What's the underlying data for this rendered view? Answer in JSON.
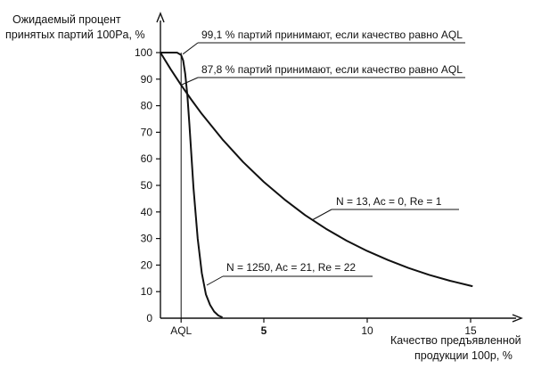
{
  "chart_data": {
    "type": "line",
    "ylabel_line1": "Ожидаемый процент",
    "ylabel_line2": "принятых партий 100Pa, %",
    "xlabel_line1": "Качество предъявленной",
    "xlabel_line2": "продукции 100p, %",
    "ylim": [
      0,
      105
    ],
    "xlim": [
      0,
      17
    ],
    "yticks": [
      0,
      10,
      20,
      30,
      40,
      50,
      60,
      70,
      80,
      90,
      100
    ],
    "xticks": [
      {
        "value": 1,
        "label": "AQL",
        "bold": false
      },
      {
        "value": 5,
        "label": "5",
        "bold": true
      },
      {
        "value": 10,
        "label": "10",
        "bold": false
      },
      {
        "value": 15,
        "label": "15",
        "bold": false
      }
    ],
    "grid": false,
    "aql": 1,
    "series": [
      {
        "name": "N = 13, Ac = 0, Re = 1",
        "x": [
          0,
          0.5,
          1,
          1.5,
          2,
          3,
          4,
          5,
          6,
          7,
          8,
          9,
          10,
          11,
          12,
          13,
          14,
          15,
          15.1
        ],
        "y": [
          100,
          93.7,
          87.8,
          82.2,
          76.9,
          67.3,
          58.8,
          51.3,
          44.7,
          38.8,
          33.7,
          29.2,
          25.3,
          21.9,
          18.9,
          16.3,
          14.1,
          12.2,
          12.0
        ]
      },
      {
        "name": "N = 1250, Ac = 21, Re = 22",
        "x": [
          0,
          0.8,
          1,
          1.1,
          1.2,
          1.3,
          1.4,
          1.5,
          1.6,
          1.8,
          2.0,
          2.2,
          2.4,
          2.6,
          2.8,
          3.0
        ],
        "y": [
          100,
          100,
          99.1,
          97,
          92,
          84,
          73,
          61,
          49,
          30,
          17,
          9,
          5,
          2.5,
          1,
          0.3
        ]
      }
    ],
    "annotations": [
      {
        "text": "99,1 % партий принимают, если качество равно AQL"
      },
      {
        "text": "87,8 % партий принимают, если качество равно AQL"
      },
      {
        "text": "N = 13, Ac = 0, Re = 1"
      },
      {
        "text": "N = 1250, Ac = 21, Re = 22"
      }
    ]
  }
}
